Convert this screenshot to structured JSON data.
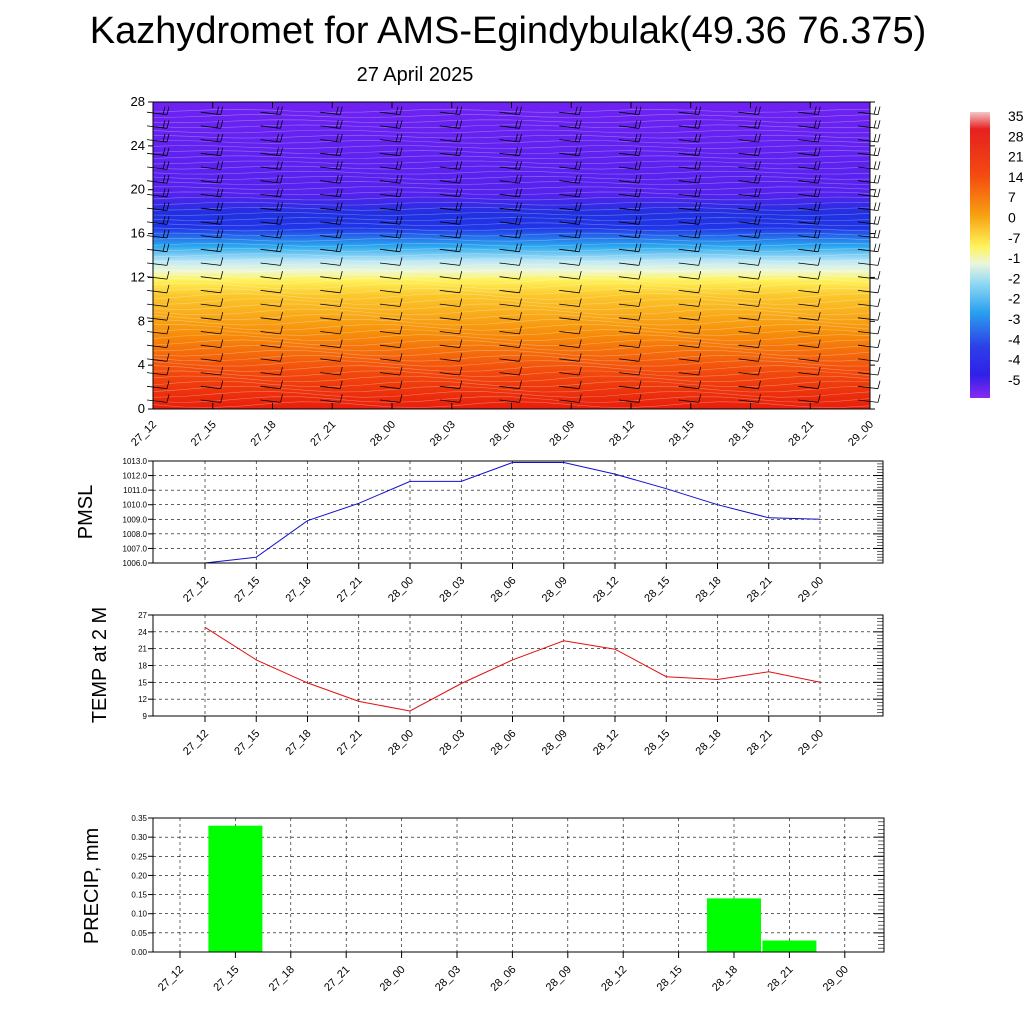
{
  "header": {
    "title": "Kazhydromet for AMS-Egindybulak(49.36 76.375)",
    "subtitle": "27 April 2025"
  },
  "chart_data": [
    {
      "type": "heatmap",
      "description_key": "time-height cross-section",
      "x_ticks": [
        "27_12",
        "27_15",
        "27_18",
        "27_21",
        "28_00",
        "28_03",
        "28_06",
        "28_09",
        "28_12",
        "28_15",
        "28_18",
        "28_21",
        "29_00"
      ],
      "y_ticks": [
        "0",
        "4",
        "8",
        "12",
        "16",
        "20",
        "24",
        "28"
      ],
      "ylim": [
        0,
        28
      ],
      "colorbar_labels": [
        "35",
        "28",
        "21",
        "14",
        "7",
        "0",
        "-7",
        "-1",
        "-2",
        "-2",
        "-3",
        "-4",
        "-4",
        "-5"
      ],
      "colors": {
        "warm_bottom": "#e81e0c",
        "orange": "#f7900a",
        "yellow": "#fff35a",
        "light_blue": "#bfe9f6",
        "cyan": "#2aa8ee",
        "blue": "#2035e8",
        "violet": "#6f22f2"
      }
    },
    {
      "type": "line",
      "ylabel": "PMSL",
      "x": [
        "27_12",
        "27_15",
        "27_18",
        "27_21",
        "28_00",
        "28_03",
        "28_06",
        "28_09",
        "28_12",
        "28_15",
        "28_18",
        "28_21",
        "29_00"
      ],
      "series": [
        {
          "values": [
            1006.0,
            1006.4,
            1008.9,
            1010.1,
            1011.6,
            1011.6,
            1012.9,
            1012.9,
            1012.1,
            1011.1,
            1010.0,
            1009.1,
            1009.0
          ]
        }
      ],
      "ylim": [
        1006.0,
        1013.0
      ],
      "y_ticks": [
        "1006.0",
        "1007.0",
        "1008.0",
        "1009.0",
        "1010.0",
        "1011.0",
        "1012.0",
        "1013.0"
      ],
      "color": "#1010d0",
      "grid": true
    },
    {
      "type": "line",
      "ylabel": "TEMP at 2 M",
      "x": [
        "27_12",
        "27_15",
        "27_18",
        "27_21",
        "28_00",
        "28_03",
        "28_06",
        "28_09",
        "28_12",
        "28_15",
        "28_18",
        "28_21",
        "29_00"
      ],
      "series": [
        {
          "values": [
            24.8,
            19.0,
            14.9,
            11.6,
            9.9,
            14.8,
            19.0,
            22.4,
            20.9,
            16.0,
            15.5,
            16.9,
            15.0
          ]
        }
      ],
      "ylim": [
        9,
        27
      ],
      "y_ticks": [
        "9",
        "12",
        "15",
        "18",
        "21",
        "24",
        "27"
      ],
      "color": "#e01010",
      "grid": true
    },
    {
      "type": "bar",
      "ylabel": "PRECIP, mm",
      "categories": [
        "27_12",
        "27_15",
        "27_18",
        "27_21",
        "28_00",
        "28_03",
        "28_06",
        "28_09",
        "28_12",
        "28_15",
        "28_18",
        "28_21",
        "29_00"
      ],
      "values": [
        0,
        0.33,
        0,
        0,
        0,
        0,
        0,
        0,
        0,
        0,
        0.14,
        0.03,
        0
      ],
      "ylim": [
        0,
        0.35
      ],
      "y_ticks": [
        "0.00",
        "0.05",
        "0.10",
        "0.15",
        "0.20",
        "0.25",
        "0.30",
        "0.35"
      ],
      "color": "#00ff00",
      "grid": true
    }
  ]
}
